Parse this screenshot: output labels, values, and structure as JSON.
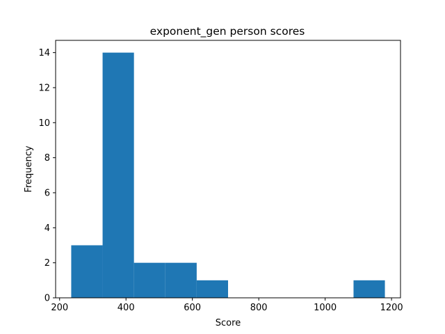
{
  "chart_data": {
    "type": "bar",
    "title": "exponent_gen person scores",
    "xlabel": "Score",
    "ylabel": "Frequency",
    "xlim": [
      188,
      1227
    ],
    "ylim": [
      0,
      14.7
    ],
    "bin_edges": [
      235,
      329.5,
      424,
      518.5,
      613,
      707.5,
      802,
      896.5,
      991,
      1085.5,
      1180
    ],
    "values": [
      3,
      14,
      2,
      2,
      1,
      0,
      0,
      0,
      0,
      1
    ],
    "x_ticks": [
      200,
      400,
      600,
      800,
      1000,
      1200
    ],
    "x_tick_labels": [
      "200",
      "400",
      "600",
      "800",
      "1000",
      "1200"
    ],
    "y_ticks": [
      0,
      2,
      4,
      6,
      8,
      10,
      12,
      14
    ],
    "y_tick_labels": [
      "0",
      "2",
      "4",
      "6",
      "8",
      "10",
      "12",
      "14"
    ],
    "bar_color": "#1f77b4",
    "grid": false
  }
}
